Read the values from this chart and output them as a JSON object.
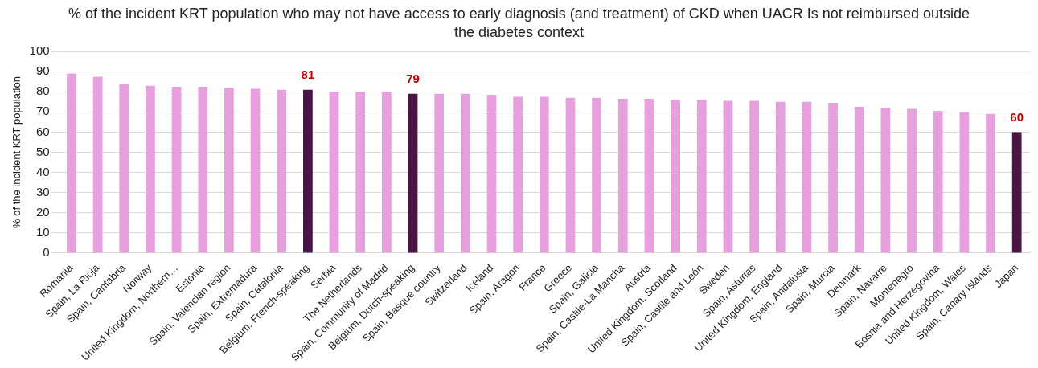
{
  "chart_data": {
    "type": "bar",
    "title": "% of the incident KRT population who may not have access to early diagnosis (and treatment) of CKD when UACR Is not reimbursed outside the diabetes context",
    "ylabel": "% of the incident KRT population",
    "categories": [
      "Romania",
      "Spain, La Rioja",
      "Spain, Cantabria",
      "Norway",
      "United Kingdom, Northern…",
      "Estonia",
      "Spain, Valencian region",
      "Spain, Extremadura",
      "Spain, Catalonia",
      "Belgium, French-speaking",
      "Serbia",
      "The Netherlands",
      "Spain, Community of Madrid",
      "Belgium, Dutch-speaking",
      "Spain, Basque country",
      "Switzerland",
      "Iceland",
      "Spain, Aragon",
      "France",
      "Greece",
      "Spain, Galicia",
      "Spain, Castile-La Mancha",
      "Austria",
      "United Kingdom, Scotland",
      "Spain, Castile and León",
      "Sweden",
      "Spain, Asturias",
      "United Kingdom, England",
      "Spain, Andalusia",
      "Spain, Murcia",
      "Denmark",
      "Spain, Navarre",
      "Montenegro",
      "Bosnia and Herzegovina",
      "United Kingdom, Wales",
      "Spain, Canary Islands",
      "Japan"
    ],
    "values": [
      89,
      87.5,
      84,
      83,
      82.5,
      82.5,
      82,
      81.5,
      81,
      81,
      80,
      80,
      80,
      79,
      79,
      79,
      78.5,
      77.5,
      77.5,
      77,
      77,
      76.5,
      76.5,
      76,
      76,
      75.5,
      75.5,
      75,
      75,
      74.5,
      72.5,
      72,
      71.5,
      70.5,
      70,
      69,
      60
    ],
    "colors": [
      "#e6a0dd",
      "#e6a0dd",
      "#e6a0dd",
      "#e6a0dd",
      "#e6a0dd",
      "#e6a0dd",
      "#e6a0dd",
      "#e6a0dd",
      "#e6a0dd",
      "#4a1545",
      "#e6a0dd",
      "#e6a0dd",
      "#e6a0dd",
      "#4a1545",
      "#e6a0dd",
      "#e6a0dd",
      "#e6a0dd",
      "#e6a0dd",
      "#e6a0dd",
      "#e6a0dd",
      "#e6a0dd",
      "#e6a0dd",
      "#e6a0dd",
      "#e6a0dd",
      "#e6a0dd",
      "#e6a0dd",
      "#e6a0dd",
      "#e6a0dd",
      "#e6a0dd",
      "#e6a0dd",
      "#e6a0dd",
      "#e6a0dd",
      "#e6a0dd",
      "#e6a0dd",
      "#e6a0dd",
      "#e6a0dd",
      "#4a1545"
    ],
    "value_labels": [
      null,
      null,
      null,
      null,
      null,
      null,
      null,
      null,
      null,
      "81",
      null,
      null,
      null,
      "79",
      null,
      null,
      null,
      null,
      null,
      null,
      null,
      null,
      null,
      null,
      null,
      null,
      null,
      null,
      null,
      null,
      null,
      null,
      null,
      null,
      null,
      null,
      "60"
    ],
    "ylim": [
      0,
      100
    ],
    "yticks": [
      0,
      10,
      20,
      30,
      40,
      50,
      60,
      70,
      80,
      90,
      100
    ],
    "grid": "y",
    "legend": false
  }
}
